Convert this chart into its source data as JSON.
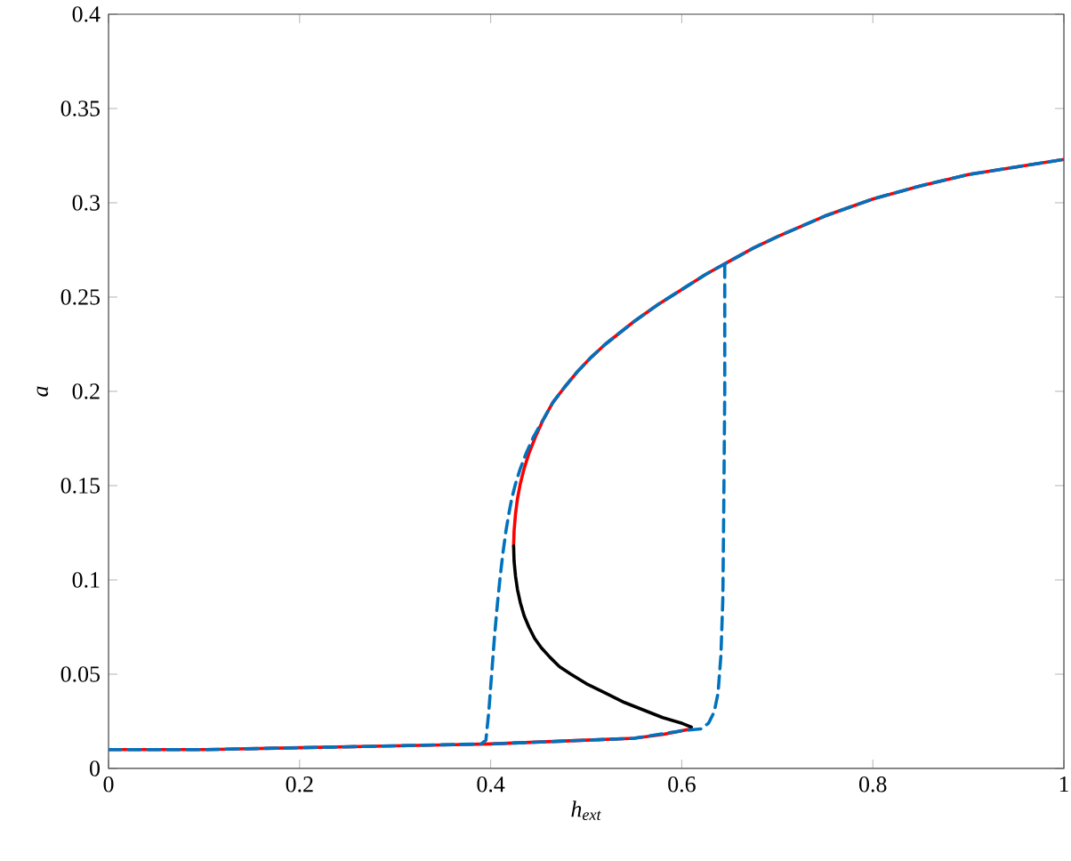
{
  "chart_data": {
    "type": "line",
    "xlabel": "h$_{ext}$",
    "ylabel": "a",
    "xlim": [
      0,
      1
    ],
    "ylim": [
      0,
      0.4
    ],
    "xticks": [
      0,
      0.2,
      0.4,
      0.6,
      0.8,
      1
    ],
    "yticks": [
      0,
      0.05,
      0.1,
      0.15,
      0.2,
      0.25,
      0.3,
      0.35,
      0.4
    ],
    "grid": false,
    "marker": "none",
    "series": [
      {
        "color": "#ff0000",
        "line_style": "solid",
        "x": [
          0.424,
          0.4245,
          0.426,
          0.428,
          0.431,
          0.435,
          0.44,
          0.447,
          0.455,
          0.465,
          0.477,
          0.49,
          0.505,
          0.52,
          0.535,
          0.55,
          0.575,
          0.6,
          0.625,
          0.65,
          0.675,
          0.7,
          0.75,
          0.8,
          0.85,
          0.9,
          0.95,
          1
        ],
        "values": [
          0.118,
          0.126,
          0.135,
          0.143,
          0.151,
          0.159,
          0.167,
          0.176,
          0.185,
          0.194,
          0.202,
          0.21,
          0.218,
          0.225,
          0.231,
          0.237,
          0.246,
          0.254,
          0.262,
          0.269,
          0.276,
          0.282,
          0.293,
          0.302,
          0.309,
          0.315,
          0.319,
          0.323
        ]
      },
      {
        "color": "#ff0000",
        "line_style": "solid",
        "x": [
          0,
          0.1,
          0.2,
          0.3,
          0.4,
          0.5,
          0.55,
          0.58,
          0.61
        ],
        "values": [
          0.01,
          0.01,
          0.011,
          0.012,
          0.013,
          0.015,
          0.016,
          0.018,
          0.021
        ]
      },
      {
        "color": "#000000",
        "line_style": "solid",
        "x": [
          0.424,
          0.4245,
          0.426,
          0.428,
          0.431,
          0.435,
          0.44,
          0.446,
          0.453,
          0.462,
          0.472,
          0.484,
          0.5,
          0.52,
          0.54,
          0.56,
          0.58,
          0.6,
          0.61
        ],
        "values": [
          0.118,
          0.11,
          0.102,
          0.095,
          0.088,
          0.081,
          0.075,
          0.069,
          0.064,
          0.059,
          0.054,
          0.05,
          0.045,
          0.04,
          0.035,
          0.031,
          0.027,
          0.024,
          0.022
        ]
      },
      {
        "color": "#0072bd",
        "line_style": "dashed",
        "x": [
          0,
          0.1,
          0.2,
          0.3,
          0.39,
          0.395,
          0.398,
          0.401,
          0.404,
          0.407,
          0.41,
          0.413,
          0.416,
          0.419,
          0.422,
          0.426,
          0.431,
          0.437,
          0.445,
          0.455,
          0.465,
          0.477,
          0.49,
          0.505,
          0.52,
          0.535,
          0.55,
          0.575,
          0.6,
          0.625,
          0.65,
          0.675,
          0.7,
          0.75,
          0.8,
          0.85,
          0.9,
          0.95,
          1
        ],
        "values": [
          0.01,
          0.01,
          0.011,
          0.012,
          0.013,
          0.015,
          0.03,
          0.05,
          0.07,
          0.087,
          0.102,
          0.115,
          0.126,
          0.135,
          0.143,
          0.151,
          0.159,
          0.167,
          0.176,
          0.185,
          0.194,
          0.202,
          0.21,
          0.218,
          0.225,
          0.231,
          0.237,
          0.246,
          0.254,
          0.262,
          0.269,
          0.276,
          0.282,
          0.293,
          0.302,
          0.309,
          0.315,
          0.319,
          0.323
        ]
      },
      {
        "color": "#0072bd",
        "line_style": "dashed",
        "x": [
          0.645,
          0.645,
          0.644,
          0.643,
          0.641,
          0.638,
          0.634,
          0.628,
          0.62,
          0.6,
          0.55,
          0.5,
          0.45,
          0.4
        ],
        "values": [
          0.267,
          0.2,
          0.14,
          0.09,
          0.06,
          0.04,
          0.03,
          0.024,
          0.021,
          0.02,
          0.016,
          0.015,
          0.014,
          0.013
        ]
      }
    ]
  }
}
